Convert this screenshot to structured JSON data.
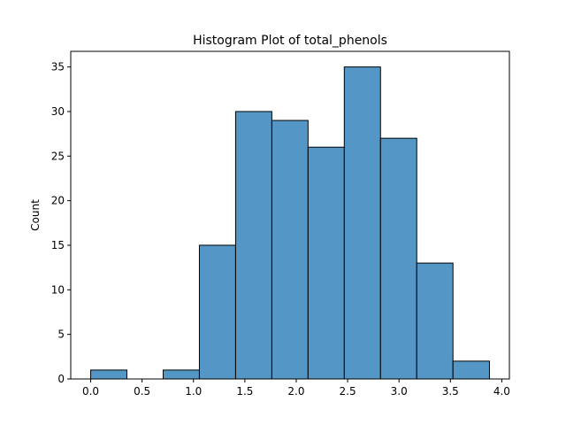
{
  "chart_data": {
    "type": "bar",
    "title": "Histogram Plot of total_phenols",
    "xlabel": "",
    "ylabel": "Count",
    "bins": [
      {
        "x0": 0.0,
        "x1": 0.3525,
        "count": 1
      },
      {
        "x0": 0.3525,
        "x1": 0.705,
        "count": 0
      },
      {
        "x0": 0.705,
        "x1": 1.0575,
        "count": 1
      },
      {
        "x0": 1.0575,
        "x1": 1.41,
        "count": 15
      },
      {
        "x0": 1.41,
        "x1": 1.7625,
        "count": 30
      },
      {
        "x0": 1.7625,
        "x1": 2.115,
        "count": 29
      },
      {
        "x0": 2.115,
        "x1": 2.4675,
        "count": 26
      },
      {
        "x0": 2.4675,
        "x1": 2.82,
        "count": 35
      },
      {
        "x0": 2.82,
        "x1": 3.1725,
        "count": 27
      },
      {
        "x0": 3.1725,
        "x1": 3.525,
        "count": 13
      },
      {
        "x0": 3.525,
        "x1": 3.88,
        "count": 2
      }
    ],
    "xticks": [
      "0.0",
      "0.5",
      "1.0",
      "1.5",
      "2.0",
      "2.5",
      "3.0",
      "3.5",
      "4.0"
    ],
    "yticks": [
      "0",
      "5",
      "10",
      "15",
      "20",
      "25",
      "30",
      "35"
    ],
    "xlim": [
      -0.194,
      4.074
    ],
    "ylim": [
      0,
      36.75
    ],
    "bar_color": "#5497c6",
    "edge_color": "#000000",
    "grid": false
  }
}
